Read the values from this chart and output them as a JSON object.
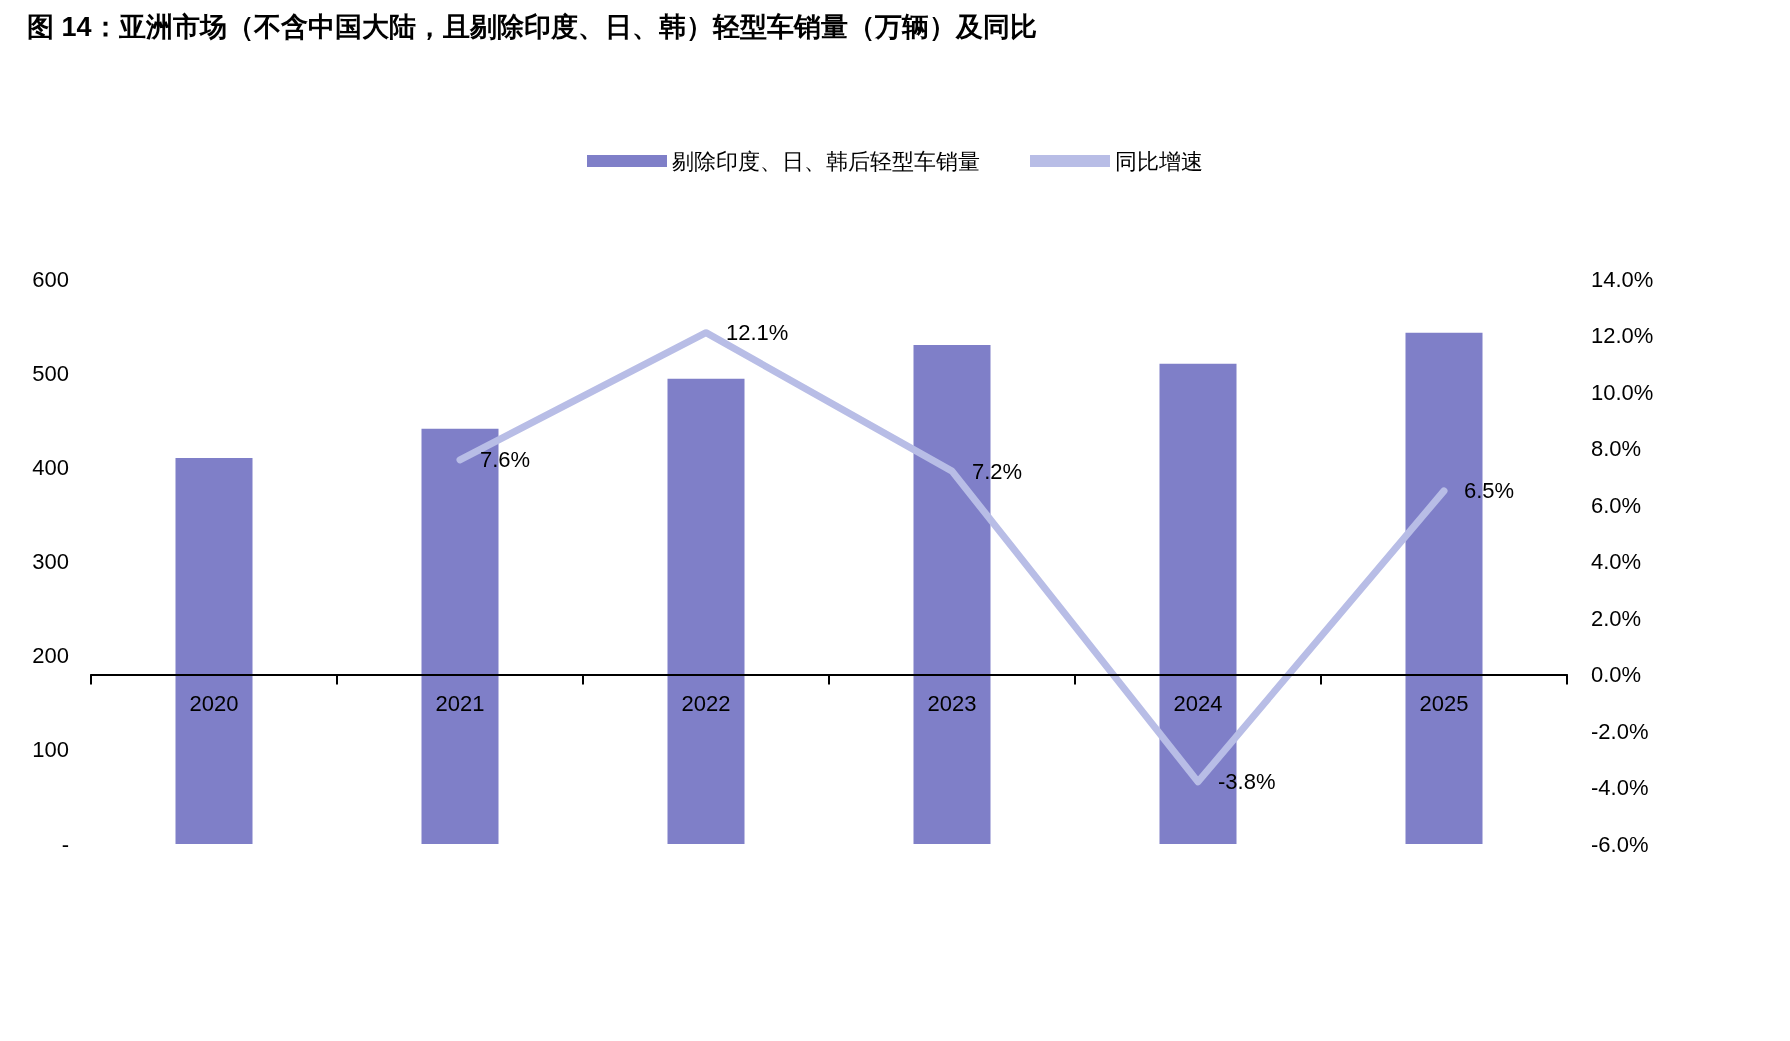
{
  "chart_data": {
    "type": "bar",
    "title": "图 14：亚洲市场（不含中国大陆，且剔除印度、日、韩）轻型车销量（万辆）及同比",
    "categories": [
      "2020",
      "2021",
      "2022",
      "2023",
      "2024",
      "2025"
    ],
    "series": [
      {
        "name": "剔除印度、日、韩后轻型车销量",
        "color": "#7f7fc8",
        "values": [
          410,
          441,
          494,
          530,
          510,
          543
        ]
      },
      {
        "name": "同比增速",
        "type": "line",
        "axis": "y2",
        "color": "#b8bde6",
        "marker": "none",
        "values": [
          null,
          7.6,
          12.1,
          7.2,
          -3.8,
          6.5
        ],
        "value_labels": [
          null,
          "7.6%",
          "12.1%",
          "7.2%",
          "-3.8%",
          "6.5%"
        ]
      }
    ],
    "ylim": [
      0,
      600
    ],
    "yticks": [
      {
        "value": 0,
        "label": "-"
      },
      100,
      200,
      300,
      400,
      500,
      600
    ],
    "y2lim": [
      -6,
      14
    ],
    "y2ticks": [
      {
        "value": -6,
        "label": "-6.0%"
      },
      {
        "value": -4,
        "label": "-4.0%"
      },
      {
        "value": -2,
        "label": "-2.0%"
      },
      {
        "value": 0,
        "label": "0.0%"
      },
      {
        "value": 2,
        "label": "2.0%"
      },
      {
        "value": 4,
        "label": "4.0%"
      },
      {
        "value": 6,
        "label": "6.0%"
      },
      {
        "value": 8,
        "label": "8.0%"
      },
      {
        "value": 10,
        "label": "10.0%"
      },
      {
        "value": 12,
        "label": "12.0%"
      },
      {
        "value": 14,
        "label": "14.0%"
      }
    ],
    "legend": "top"
  }
}
